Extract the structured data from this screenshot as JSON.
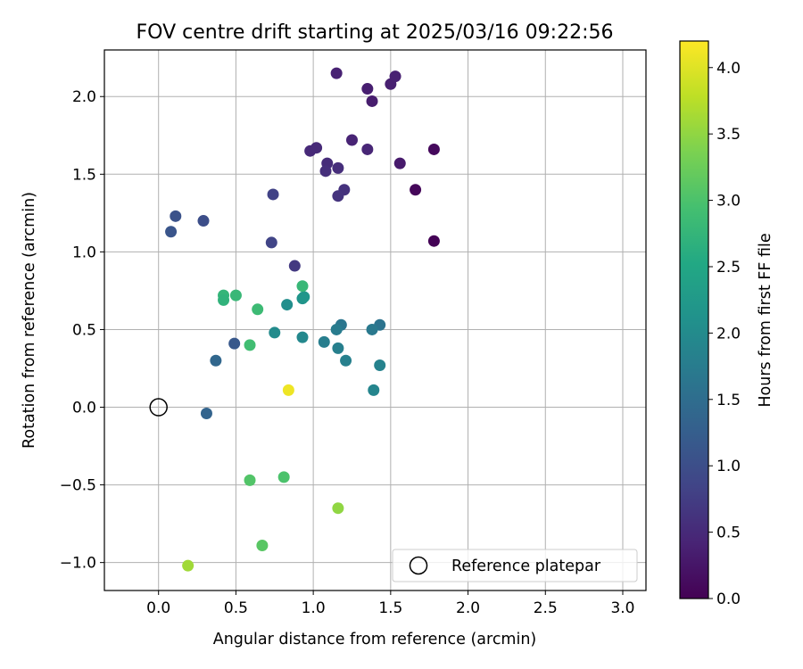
{
  "chart_data": {
    "type": "scatter",
    "title": "FOV centre drift starting at 2025/03/16 09:22:56",
    "xlabel": "Angular distance from reference (arcmin)",
    "ylabel": "Rotation from reference (arcmin)",
    "xlim": [
      -0.35,
      3.15
    ],
    "ylim": [
      -1.18,
      2.3
    ],
    "xticks": [
      0.0,
      0.5,
      1.0,
      1.5,
      2.0,
      2.5,
      3.0
    ],
    "xtick_labels": [
      "0.0",
      "0.5",
      "1.0",
      "1.5",
      "2.0",
      "2.5",
      "3.0"
    ],
    "yticks": [
      -1.0,
      -0.5,
      0.0,
      0.5,
      1.0,
      1.5,
      2.0
    ],
    "ytick_labels": [
      "−1.0",
      "−0.5",
      "0.0",
      "0.5",
      "1.0",
      "1.5",
      "2.0"
    ],
    "grid": true,
    "colormap": "viridis",
    "colorbar": {
      "label": "Hours from first FF file",
      "range": [
        0.0,
        4.2
      ],
      "ticks": [
        0.0,
        0.5,
        1.0,
        1.5,
        2.0,
        2.5,
        3.0,
        3.5,
        4.0
      ],
      "tick_labels": [
        "0.0",
        "0.5",
        "1.0",
        "1.5",
        "2.0",
        "2.5",
        "3.0",
        "3.5",
        "4.0"
      ]
    },
    "legend": {
      "placement": "lower-right",
      "entries": [
        "Reference platepar"
      ]
    },
    "reference_point": {
      "name": "Reference platepar",
      "x": 0.0,
      "y": 0.0
    },
    "points": [
      {
        "x": 1.78,
        "y": 1.07,
        "c": 0.02
      },
      {
        "x": 1.66,
        "y": 1.4,
        "c": 0.07
      },
      {
        "x": 1.78,
        "y": 1.66,
        "c": 0.1
      },
      {
        "x": 1.56,
        "y": 1.57,
        "c": 0.3
      },
      {
        "x": 1.38,
        "y": 1.97,
        "c": 0.33
      },
      {
        "x": 1.35,
        "y": 2.05,
        "c": 0.35
      },
      {
        "x": 1.5,
        "y": 2.08,
        "c": 0.37
      },
      {
        "x": 1.53,
        "y": 2.13,
        "c": 0.38
      },
      {
        "x": 1.15,
        "y": 2.15,
        "c": 0.4
      },
      {
        "x": 1.25,
        "y": 1.72,
        "c": 0.42
      },
      {
        "x": 1.35,
        "y": 1.66,
        "c": 0.45
      },
      {
        "x": 0.98,
        "y": 1.65,
        "c": 0.48
      },
      {
        "x": 1.02,
        "y": 1.67,
        "c": 0.5
      },
      {
        "x": 1.09,
        "y": 1.57,
        "c": 0.52
      },
      {
        "x": 1.16,
        "y": 1.54,
        "c": 0.55
      },
      {
        "x": 1.08,
        "y": 1.52,
        "c": 0.57
      },
      {
        "x": 1.2,
        "y": 1.4,
        "c": 0.6
      },
      {
        "x": 1.16,
        "y": 1.36,
        "c": 0.63
      },
      {
        "x": 0.88,
        "y": 0.91,
        "c": 0.7
      },
      {
        "x": 0.74,
        "y": 1.37,
        "c": 0.82
      },
      {
        "x": 0.73,
        "y": 1.06,
        "c": 0.85
      },
      {
        "x": 0.29,
        "y": 1.2,
        "c": 1.0
      },
      {
        "x": 0.11,
        "y": 1.23,
        "c": 1.05
      },
      {
        "x": 0.08,
        "y": 1.13,
        "c": 1.1
      },
      {
        "x": 0.49,
        "y": 0.41,
        "c": 1.15
      },
      {
        "x": 0.31,
        "y": -0.04,
        "c": 1.35
      },
      {
        "x": 0.37,
        "y": 0.3,
        "c": 1.4
      },
      {
        "x": 1.43,
        "y": 0.53,
        "c": 1.6
      },
      {
        "x": 1.18,
        "y": 0.53,
        "c": 1.65
      },
      {
        "x": 1.38,
        "y": 0.5,
        "c": 1.7
      },
      {
        "x": 1.15,
        "y": 0.5,
        "c": 1.75
      },
      {
        "x": 1.07,
        "y": 0.42,
        "c": 1.78
      },
      {
        "x": 1.16,
        "y": 0.38,
        "c": 1.8
      },
      {
        "x": 1.21,
        "y": 0.3,
        "c": 1.82
      },
      {
        "x": 1.43,
        "y": 0.27,
        "c": 1.85
      },
      {
        "x": 1.39,
        "y": 0.11,
        "c": 1.9
      },
      {
        "x": 0.93,
        "y": 0.45,
        "c": 1.95
      },
      {
        "x": 0.75,
        "y": 0.48,
        "c": 2.0
      },
      {
        "x": 0.83,
        "y": 0.66,
        "c": 2.05
      },
      {
        "x": 0.93,
        "y": 0.7,
        "c": 2.15
      },
      {
        "x": 0.94,
        "y": 0.71,
        "c": 2.2
      },
      {
        "x": 0.5,
        "y": 0.72,
        "c": 2.8
      },
      {
        "x": 0.42,
        "y": 0.72,
        "c": 2.75
      },
      {
        "x": 0.42,
        "y": 0.69,
        "c": 2.7
      },
      {
        "x": 0.64,
        "y": 0.63,
        "c": 2.85
      },
      {
        "x": 0.93,
        "y": 0.78,
        "c": 2.8
      },
      {
        "x": 0.59,
        "y": 0.4,
        "c": 2.9
      },
      {
        "x": 0.81,
        "y": -0.45,
        "c": 3.0
      },
      {
        "x": 0.59,
        "y": -0.47,
        "c": 3.05
      },
      {
        "x": 0.67,
        "y": -0.89,
        "c": 3.1
      },
      {
        "x": 1.16,
        "y": -0.65,
        "c": 3.5
      },
      {
        "x": 0.19,
        "y": -1.02,
        "c": 3.6
      },
      {
        "x": 0.84,
        "y": 0.11,
        "c": 4.1
      }
    ]
  }
}
